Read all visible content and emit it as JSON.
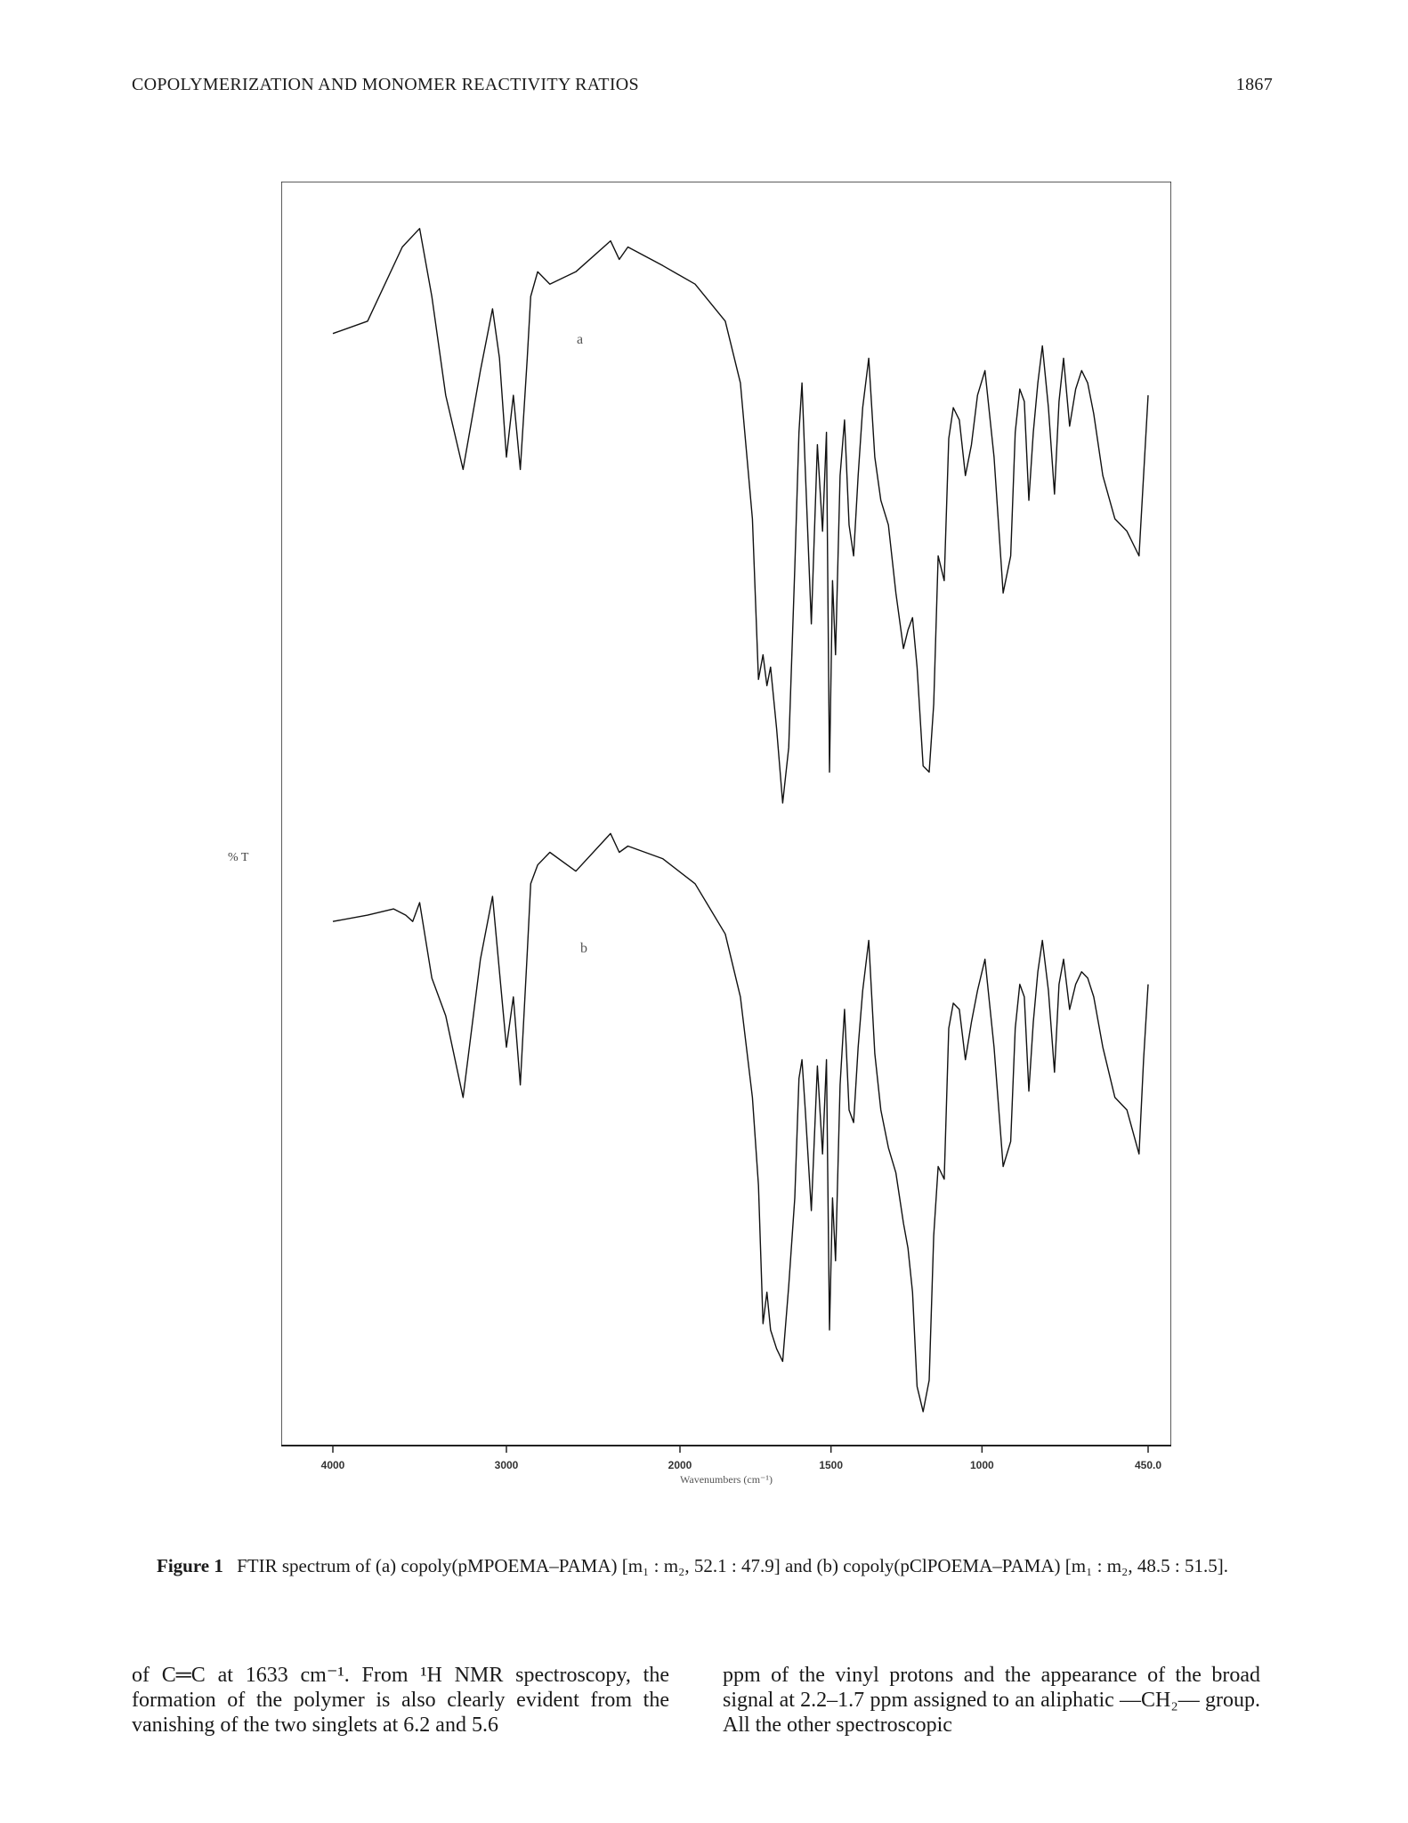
{
  "running_head": {
    "title": "COPOLYMERIZATION AND MONOMER REACTIVITY RATIOS",
    "page_number": "1867"
  },
  "figure": {
    "spectrum_a_label": "a",
    "spectrum_b_label": "b",
    "y_axis_label": "% T",
    "x_axis_label": "Wavenumbers (cm⁻¹)"
  },
  "chart_data": {
    "type": "line",
    "xlabel": "Wavenumbers (cm⁻¹)",
    "ylabel": "% T",
    "x_ticks": [
      "4000",
      "3000",
      "2000",
      "1500",
      "1000",
      "450.0"
    ],
    "xlim": [
      4000,
      450
    ],
    "x_axis_note": "x axis is split: 4000-2000 and 2000-450 use different scales",
    "series": [
      {
        "name": "a",
        "x": [
          4000,
          3800,
          3600,
          3500,
          3430,
          3350,
          3250,
          3150,
          3080,
          3040,
          3000,
          2960,
          2920,
          2880,
          2860,
          2820,
          2750,
          2600,
          2400,
          2350,
          2300,
          2100,
          1950,
          1850,
          1800,
          1760,
          1740,
          1725,
          1712,
          1700,
          1680,
          1660,
          1640,
          1620,
          1606,
          1596,
          1585,
          1565,
          1545,
          1528,
          1515,
          1505,
          1495,
          1485,
          1470,
          1455,
          1440,
          1425,
          1410,
          1395,
          1375,
          1355,
          1335,
          1310,
          1285,
          1260,
          1245,
          1230,
          1215,
          1195,
          1175,
          1160,
          1145,
          1125,
          1110,
          1095,
          1075,
          1055,
          1035,
          1015,
          990,
          960,
          930,
          905,
          890,
          875,
          860,
          845,
          830,
          815,
          800,
          780,
          760,
          745,
          730,
          710,
          690,
          670,
          650,
          630,
          600,
          560,
          520,
          480,
          465,
          450
        ],
        "values": [
          78,
          80,
          92,
          95,
          84,
          68,
          56,
          72,
          82,
          74,
          58,
          68,
          56,
          74,
          84,
          88,
          86,
          88,
          93,
          90,
          92,
          89,
          86,
          80,
          70,
          48,
          22,
          26,
          21,
          24,
          14,
          2,
          11,
          40,
          62,
          70,
          56,
          31,
          60,
          46,
          62,
          7,
          38,
          26,
          55,
          64,
          47,
          42,
          55,
          66,
          74,
          58,
          51,
          47,
          36,
          27,
          30,
          32,
          24,
          8,
          7,
          18,
          42,
          38,
          61,
          66,
          64,
          55,
          60,
          68,
          72,
          58,
          36,
          42,
          62,
          69,
          67,
          51,
          62,
          70,
          76,
          66,
          52,
          67,
          74,
          63,
          69,
          72,
          70,
          65,
          55,
          48,
          46,
          42,
          55,
          68
        ]
      },
      {
        "name": "b",
        "x": [
          4000,
          3800,
          3650,
          3580,
          3540,
          3500,
          3430,
          3350,
          3250,
          3150,
          3080,
          3040,
          3000,
          2960,
          2920,
          2880,
          2860,
          2820,
          2750,
          2600,
          2400,
          2350,
          2300,
          2100,
          1950,
          1850,
          1800,
          1760,
          1740,
          1725,
          1712,
          1700,
          1680,
          1660,
          1640,
          1620,
          1606,
          1596,
          1585,
          1565,
          1545,
          1528,
          1515,
          1505,
          1495,
          1485,
          1470,
          1455,
          1440,
          1425,
          1410,
          1395,
          1375,
          1355,
          1335,
          1310,
          1285,
          1260,
          1245,
          1230,
          1215,
          1195,
          1175,
          1160,
          1145,
          1125,
          1110,
          1095,
          1075,
          1055,
          1035,
          1015,
          990,
          960,
          930,
          905,
          890,
          875,
          860,
          845,
          830,
          815,
          800,
          780,
          760,
          745,
          730,
          710,
          690,
          670,
          650,
          630,
          600,
          560,
          520,
          480,
          465,
          450
        ],
        "values": [
          80,
          81,
          82,
          81,
          80,
          83,
          71,
          65,
          52,
          74,
          84,
          72,
          60,
          68,
          54,
          75,
          86,
          89,
          91,
          88,
          94,
          91,
          92,
          90,
          86,
          78,
          68,
          52,
          38,
          16,
          21,
          15,
          12,
          10,
          22,
          36,
          55,
          58,
          50,
          34,
          57,
          43,
          58,
          15,
          36,
          26,
          54,
          66,
          50,
          48,
          60,
          69,
          77,
          59,
          50,
          44,
          40,
          32,
          28,
          21,
          6,
          2,
          7,
          30,
          41,
          39,
          63,
          67,
          66,
          58,
          64,
          69,
          74,
          60,
          41,
          45,
          63,
          70,
          68,
          53,
          64,
          72,
          77,
          69,
          56,
          70,
          74,
          66,
          70,
          72,
          71,
          68,
          60,
          52,
          50,
          43,
          58,
          70
        ]
      }
    ]
  },
  "caption": {
    "label": "Figure 1",
    "text": "FTIR spectrum of (a) copoly(pMPOEMA–PAMA) [m₁ : m₂, 52.1 : 47.9] and (b) copoly(pClPOEMA–PAMA) [m₁ : m₂, 48.5 : 51.5]."
  },
  "body": {
    "left_column": "of C═C at 1633 cm⁻¹. From ¹H NMR spectroscopy, the formation of the polymer is also clearly evident from the vanishing of the two singlets at 6.2 and 5.6",
    "right_column": "ppm of the vinyl protons and the appearance of the broad signal at 2.2–1.7 ppm assigned to an aliphatic —CH₂— group. All the other spectroscopic"
  }
}
